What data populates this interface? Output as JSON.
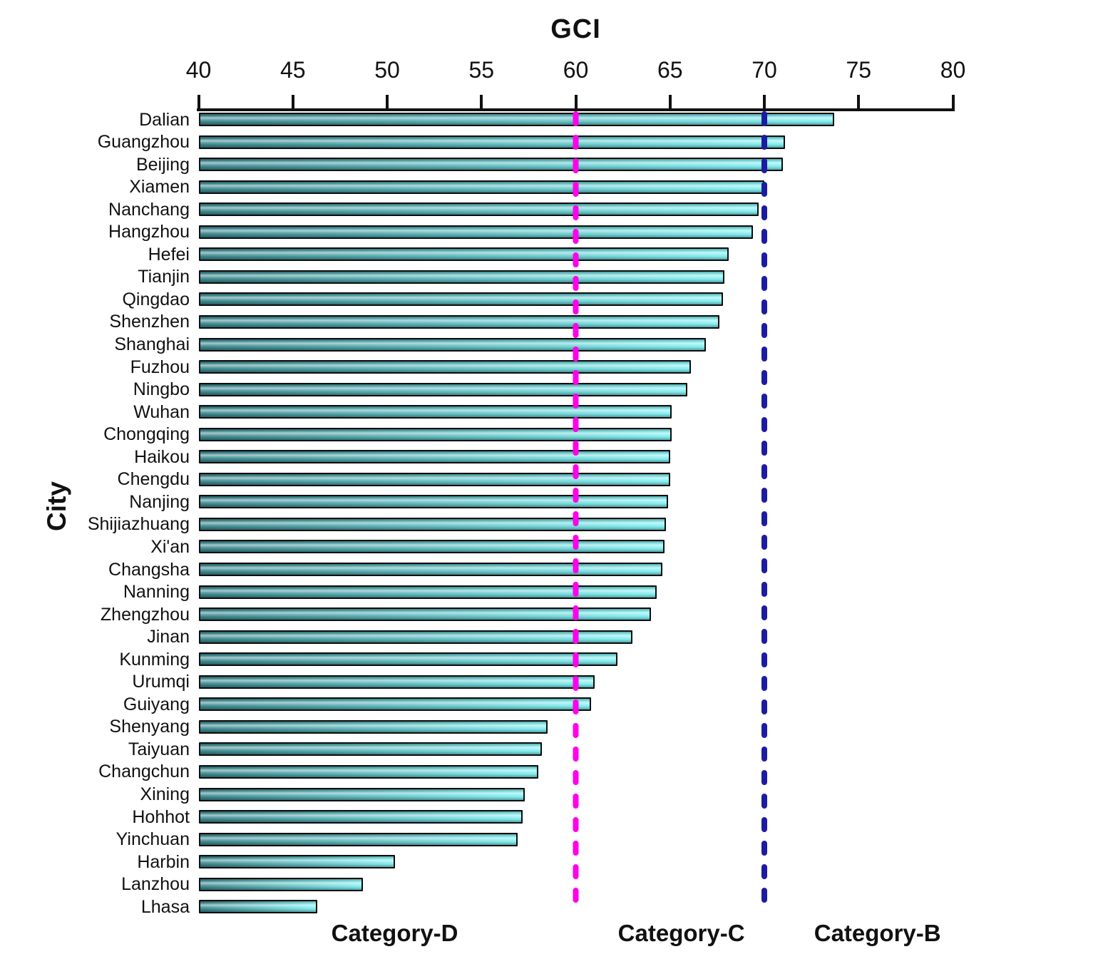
{
  "page": {
    "background": "#ffffff"
  },
  "chart_data": {
    "type": "bar",
    "orientation": "horizontal",
    "title": "GCI",
    "xlabel": "GCI",
    "ylabel": "City",
    "xlim": [
      40,
      80
    ],
    "xticks": [
      40,
      45,
      50,
      55,
      60,
      65,
      70,
      75,
      80
    ],
    "grid": false,
    "legend": "none",
    "categories": [
      "Dalian",
      "Guangzhou",
      "Beijing",
      "Xiamen",
      "Nanchang",
      "Hangzhou",
      "Hefei",
      "Tianjin",
      "Qingdao",
      "Shenzhen",
      "Shanghai",
      "Fuzhou",
      "Ningbo",
      "Wuhan",
      "Chongqing",
      "Haikou",
      "Chengdu",
      "Nanjing",
      "Shijiazhuang",
      "Xi'an",
      "Changsha",
      "Nanning",
      "Zhengzhou",
      "Jinan",
      "Kunming",
      "Urumqi",
      "Guiyang",
      "Shenyang",
      "Taiyuan",
      "Changchun",
      "Xining",
      "Hohhot",
      "Yinchuan",
      "Harbin",
      "Lanzhou",
      "Lhasa"
    ],
    "values": [
      73.7,
      71.1,
      71.0,
      70.0,
      69.7,
      69.4,
      68.1,
      67.9,
      67.8,
      67.6,
      66.9,
      66.1,
      65.9,
      65.1,
      65.1,
      65.0,
      65.0,
      64.9,
      64.8,
      64.7,
      64.6,
      64.3,
      64.0,
      63.0,
      62.2,
      61.0,
      60.8,
      58.5,
      58.2,
      58.0,
      57.3,
      57.2,
      56.9,
      50.4,
      48.7,
      46.3
    ],
    "bar_color_left": "#3a868c",
    "bar_color_right": "#82f0f2",
    "bar_border_color": "#0d0d0d",
    "reference_lines": [
      {
        "value": 60,
        "color": "#ff00e8",
        "style": "dashed"
      },
      {
        "value": 70,
        "color": "#1c1ca3",
        "style": "dashed"
      }
    ],
    "category_labels": [
      {
        "label": "Category-D",
        "x": 50.4
      },
      {
        "label": "Category-C",
        "x": 65.6
      },
      {
        "label": "Category-B",
        "x": 76.0
      }
    ]
  }
}
